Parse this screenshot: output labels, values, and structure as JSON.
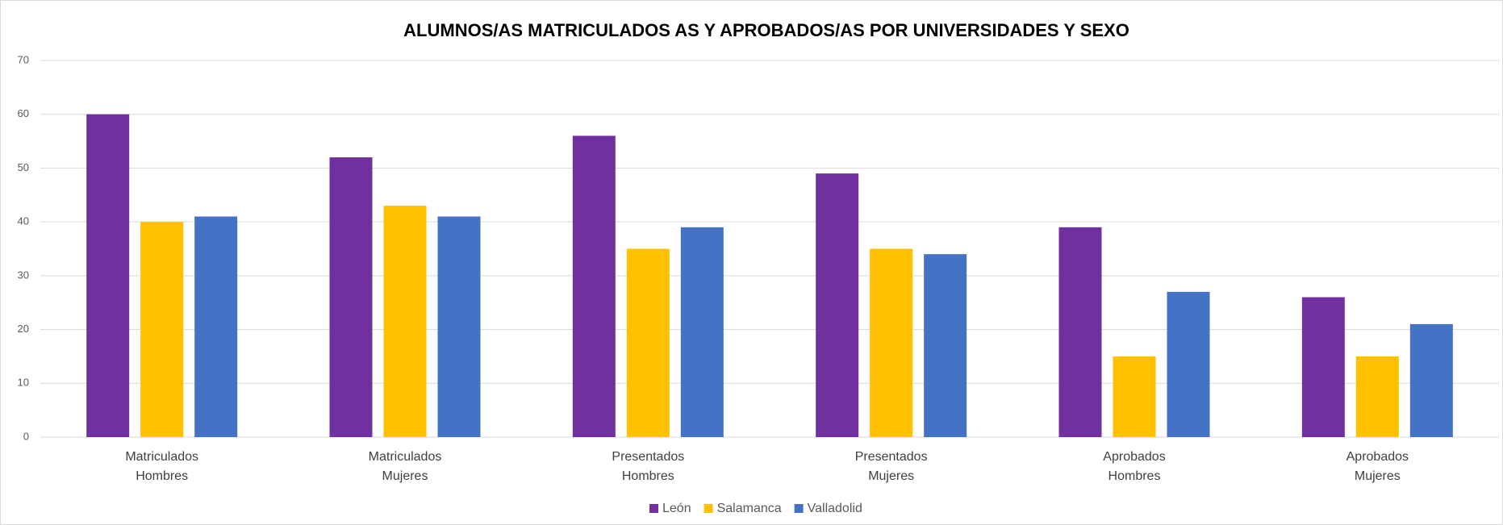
{
  "chart_data": {
    "type": "bar",
    "title": "ALUMNOS/AS MATRICULADOS AS Y APROBADOS/AS POR UNIVERSIDADES  Y SEXO",
    "categories": [
      "Matriculados Hombres",
      "Matriculados Mujeres",
      "Presentados Hombres",
      "Presentados Mujeres",
      "Aprobados Hombres",
      "Aprobados Mujeres"
    ],
    "series": [
      {
        "name": "León",
        "color": "#7030a0",
        "values": [
          60,
          52,
          56,
          49,
          39,
          26
        ]
      },
      {
        "name": "Salamanca",
        "color": "#ffc000",
        "values": [
          40,
          43,
          35,
          35,
          15,
          15
        ]
      },
      {
        "name": "Valladolid",
        "color": "#4472c4",
        "values": [
          41,
          41,
          39,
          34,
          27,
          21
        ]
      }
    ],
    "ylim": [
      0,
      70
    ],
    "yticks": [
      0,
      10,
      20,
      30,
      40,
      50,
      60,
      70
    ],
    "grid": true,
    "legend": "bottom"
  }
}
